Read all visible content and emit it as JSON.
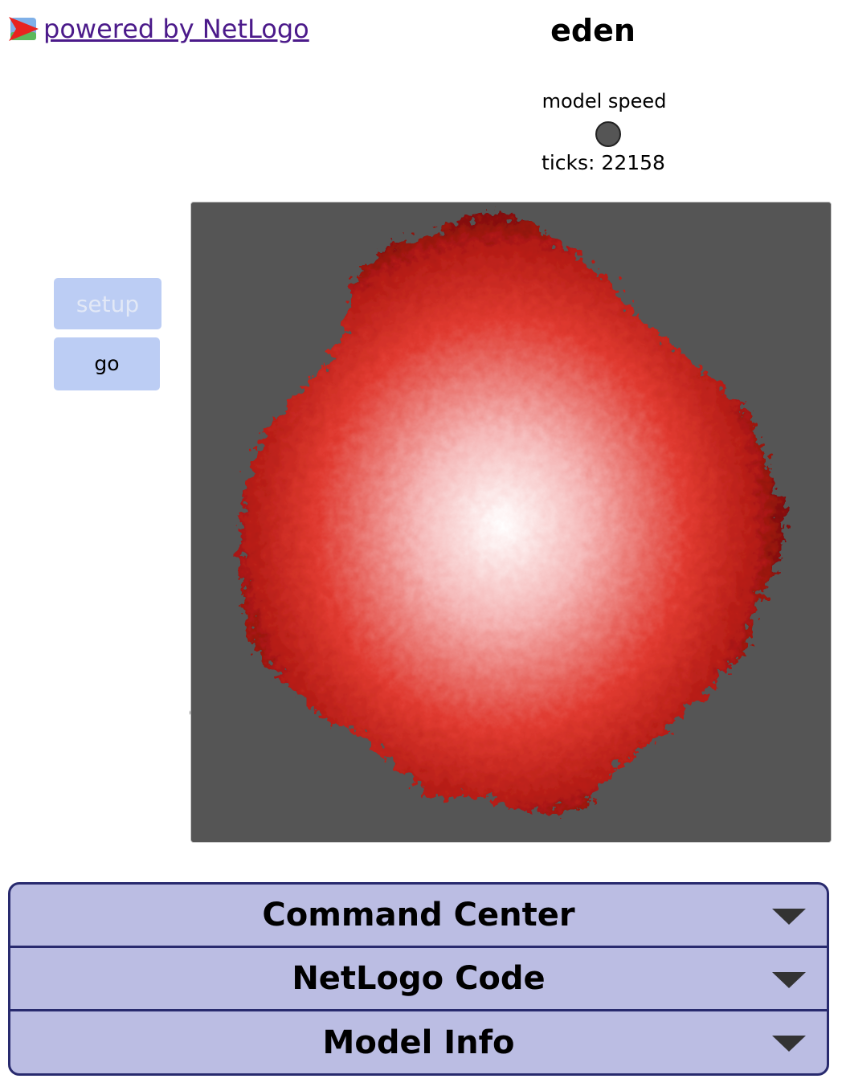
{
  "header": {
    "powered_by": "powered by NetLogo",
    "model_title": "eden"
  },
  "speed": {
    "label": "model speed",
    "ticks_text": "ticks: 22158"
  },
  "buttons": {
    "setup_label": "setup",
    "go_label": "go"
  },
  "view": {
    "background": "#555555",
    "cluster_colors": [
      "#ffffff",
      "#f5b8b8",
      "#e03a30",
      "#b21a14",
      "#5c0606"
    ]
  },
  "tabs": [
    {
      "label": "Command Center"
    },
    {
      "label": "NetLogo Code"
    },
    {
      "label": "Model Info"
    }
  ]
}
